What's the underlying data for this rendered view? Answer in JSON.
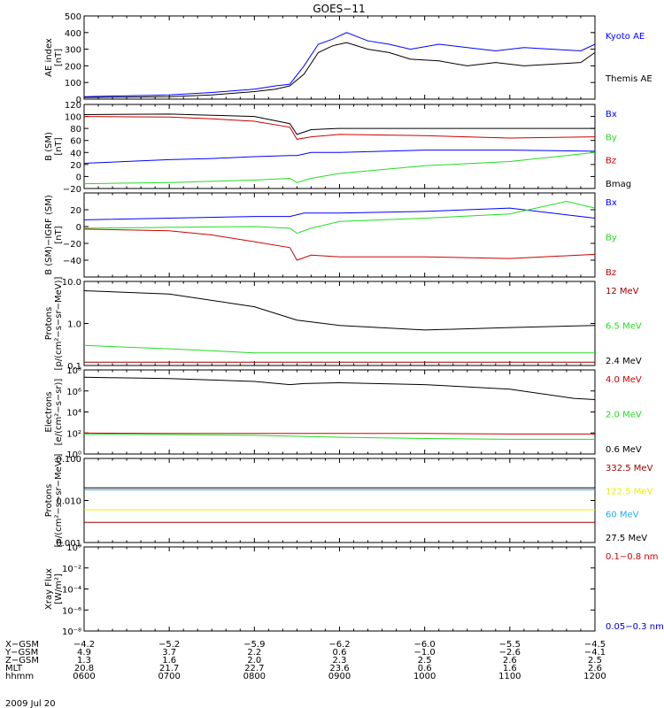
{
  "title": "GOES−11",
  "colors": {
    "blue": "#0000ff",
    "black": "#000000",
    "red": "#cc0000",
    "green": "#22dd22",
    "darkred": "#990000",
    "yellow": "#eeee00",
    "cyan": "#22aaee",
    "panel_red": "#cc0000",
    "panel_blue": "#0000cc"
  },
  "x_range": [
    "06:00",
    "12:00"
  ],
  "tick_label_rows": [
    {
      "label": "X−GSM",
      "values": [
        "−4.2",
        "−5.2",
        "−5.9",
        "−6.2",
        "−6.0",
        "−5.5",
        "−4.5"
      ]
    },
    {
      "label": "Y−GSM",
      "values": [
        "4.9",
        "3.7",
        "2.2",
        "0.6",
        "−1.0",
        "−2.6",
        "−4.1"
      ]
    },
    {
      "label": "Z−GSM",
      "values": [
        "1.3",
        "1.6",
        "2.0",
        "2.3",
        "2.5",
        "2.6",
        "2.5"
      ]
    },
    {
      "label": "MLT",
      "values": [
        "20.8",
        "21.7",
        "22.7",
        "23.6",
        "0.6",
        "1.6",
        "2.6"
      ]
    },
    {
      "label": "hhmm",
      "values": [
        "0600",
        "0700",
        "0800",
        "0900",
        "1000",
        "1100",
        "1200"
      ]
    }
  ],
  "date_label": "2009 Jul 20",
  "chart_data": [
    {
      "type": "line",
      "ylabel": [
        "AE index",
        "[nT]"
      ],
      "ylim": [
        0,
        500
      ],
      "yticks": [
        "0",
        "100",
        "200",
        "300",
        "400",
        "500"
      ],
      "series": [
        {
          "name": "Kyoto AE",
          "color_key": "blue",
          "x": [
            "06:00",
            "06:30",
            "07:00",
            "07:30",
            "08:00",
            "08:15",
            "08:25",
            "08:35",
            "08:45",
            "08:55",
            "09:05",
            "09:20",
            "09:35",
            "09:50",
            "10:10",
            "10:30",
            "10:50",
            "11:10",
            "11:30",
            "11:50",
            "12:00"
          ],
          "y": [
            15,
            20,
            25,
            40,
            60,
            80,
            90,
            200,
            330,
            360,
            400,
            350,
            330,
            300,
            330,
            310,
            290,
            310,
            300,
            290,
            330
          ]
        },
        {
          "name": "Themis AE",
          "color_key": "black",
          "x": [
            "06:00",
            "06:30",
            "07:00",
            "07:30",
            "08:00",
            "08:15",
            "08:25",
            "08:35",
            "08:45",
            "08:55",
            "09:05",
            "09:20",
            "09:35",
            "09:50",
            "10:10",
            "10:30",
            "10:50",
            "11:10",
            "11:30",
            "11:50",
            "12:00"
          ],
          "y": [
            10,
            12,
            15,
            25,
            45,
            60,
            80,
            150,
            280,
            320,
            340,
            300,
            280,
            240,
            230,
            200,
            220,
            200,
            210,
            220,
            280
          ]
        }
      ]
    },
    {
      "type": "line",
      "ylabel": [
        "B (SM)",
        "[nT]"
      ],
      "ylim": [
        -20,
        120
      ],
      "yticks": [
        "−20",
        "0",
        "20",
        "40",
        "60",
        "80",
        "100",
        "120"
      ],
      "legend": [
        {
          "label": "Bx",
          "color_key": "blue"
        },
        {
          "label": "By",
          "color_key": "green"
        },
        {
          "label": "Bz",
          "color_key": "red"
        },
        {
          "label": "Bmag",
          "color_key": "black"
        }
      ],
      "series": [
        {
          "color_key": "black",
          "x": [
            "06:00",
            "07:00",
            "07:30",
            "08:00",
            "08:25",
            "08:30",
            "08:40",
            "09:00",
            "10:00",
            "11:00",
            "12:00"
          ],
          "y": [
            103,
            104,
            102,
            100,
            88,
            70,
            78,
            80,
            80,
            80,
            80
          ]
        },
        {
          "color_key": "red",
          "x": [
            "06:00",
            "07:00",
            "07:30",
            "08:00",
            "08:25",
            "08:30",
            "08:40",
            "09:00",
            "10:00",
            "11:00",
            "12:00"
          ],
          "y": [
            100,
            99,
            96,
            92,
            82,
            62,
            66,
            70,
            68,
            64,
            66
          ]
        },
        {
          "color_key": "blue",
          "x": [
            "06:00",
            "07:00",
            "07:30",
            "08:00",
            "08:25",
            "08:30",
            "08:40",
            "09:00",
            "10:00",
            "11:00",
            "12:00"
          ],
          "y": [
            22,
            28,
            30,
            33,
            35,
            35,
            40,
            40,
            44,
            44,
            42
          ]
        },
        {
          "color_key": "green",
          "x": [
            "06:00",
            "07:00",
            "07:30",
            "08:00",
            "08:25",
            "08:30",
            "08:40",
            "09:00",
            "10:00",
            "11:00",
            "12:00"
          ],
          "y": [
            -12,
            -10,
            -8,
            -6,
            -3,
            -10,
            -3,
            5,
            18,
            25,
            40
          ]
        }
      ]
    },
    {
      "type": "line",
      "ylabel": [
        "B (SM)−IGRF (SM)",
        "[nT]"
      ],
      "ylim": [
        -60,
        40
      ],
      "yticks": [
        "−40",
        "−20",
        "0",
        "20"
      ],
      "legend": [
        {
          "label": "Bx",
          "color_key": "blue"
        },
        {
          "label": "By",
          "color_key": "green"
        },
        {
          "label": "Bz",
          "color_key": "red"
        }
      ],
      "series": [
        {
          "color_key": "blue",
          "x": [
            "06:00",
            "07:00",
            "08:00",
            "08:25",
            "08:35",
            "09:00",
            "10:00",
            "11:00",
            "11:40",
            "12:00"
          ],
          "y": [
            8,
            10,
            12,
            12,
            16,
            16,
            18,
            22,
            14,
            10
          ]
        },
        {
          "color_key": "green",
          "x": [
            "06:00",
            "07:00",
            "08:00",
            "08:25",
            "08:30",
            "08:40",
            "09:00",
            "10:00",
            "11:00",
            "11:40",
            "12:00"
          ],
          "y": [
            -2,
            -1,
            0,
            -2,
            -8,
            -2,
            6,
            10,
            15,
            30,
            22
          ]
        },
        {
          "color_key": "red",
          "x": [
            "06:00",
            "07:00",
            "07:30",
            "08:00",
            "08:25",
            "08:30",
            "08:40",
            "09:00",
            "10:00",
            "11:00",
            "12:00"
          ],
          "y": [
            -3,
            -5,
            -10,
            -18,
            -25,
            -40,
            -34,
            -36,
            -36,
            -38,
            -33
          ]
        }
      ]
    },
    {
      "type": "line",
      "ylabel": [
        "Protons",
        "[p/(cm²−s−sr−MeV)]"
      ],
      "yscale": "log",
      "ylim": [
        0.1,
        10
      ],
      "yticks": [
        "0.1",
        "1.0",
        "10.0"
      ],
      "legend": [
        {
          "label": "12 MeV",
          "color_key": "darkred"
        },
        {
          "label": "6.5 MeV",
          "color_key": "green"
        },
        {
          "label": "2.4 MeV",
          "color_key": "black"
        }
      ],
      "series": [
        {
          "color_key": "black",
          "x": [
            "06:00",
            "07:00",
            "08:00",
            "08:30",
            "09:00",
            "10:00",
            "11:00",
            "12:00"
          ],
          "y": [
            6,
            5,
            2.5,
            1.2,
            0.9,
            0.7,
            0.8,
            0.9
          ]
        },
        {
          "color_key": "green",
          "x": [
            "06:00",
            "07:00",
            "08:00",
            "09:00",
            "10:00",
            "11:00",
            "12:00"
          ],
          "y": [
            0.3,
            0.25,
            0.2,
            0.2,
            0.2,
            0.2,
            0.2
          ]
        },
        {
          "color_key": "darkred",
          "x": [
            "06:00",
            "07:00",
            "08:00",
            "09:00",
            "10:00",
            "11:00",
            "12:00"
          ],
          "y": [
            0.12,
            0.12,
            0.12,
            0.12,
            0.12,
            0.12,
            0.12
          ]
        }
      ]
    },
    {
      "type": "line",
      "ylabel": [
        "Electrons",
        "[e/(cm²−s−sr)]"
      ],
      "yscale": "log",
      "ylim": [
        1,
        100000000
      ],
      "yticks": [
        "10⁰",
        "10²",
        "10⁴",
        "10⁶",
        "10⁸"
      ],
      "legend": [
        {
          "label": "4.0 MeV",
          "color_key": "red"
        },
        {
          "label": "2.0 MeV",
          "color_key": "green"
        },
        {
          "label": "0.6 MeV",
          "color_key": "black"
        }
      ],
      "series": [
        {
          "color_key": "black",
          "x": [
            "06:00",
            "07:00",
            "08:00",
            "08:25",
            "08:35",
            "09:00",
            "10:00",
            "11:00",
            "11:45",
            "12:00"
          ],
          "y": [
            20000000,
            15000000,
            8000000,
            4000000,
            5000000,
            6000000,
            4000000,
            1500000,
            200000,
            150000
          ]
        },
        {
          "color_key": "red",
          "x": [
            "06:00",
            "07:00",
            "08:00",
            "09:00",
            "10:00",
            "11:00",
            "12:00"
          ],
          "y": [
            100,
            90,
            90,
            90,
            90,
            80,
            80
          ]
        },
        {
          "color_key": "green",
          "x": [
            "06:00",
            "07:00",
            "08:00",
            "09:00",
            "10:00",
            "11:00",
            "12:00"
          ],
          "y": [
            80,
            70,
            60,
            40,
            30,
            25,
            25
          ]
        }
      ]
    },
    {
      "type": "line",
      "ylabel": [
        "Protons",
        "[p/(cm²−s−sr−MeV)]"
      ],
      "yscale": "log",
      "ylim": [
        0.001,
        0.1
      ],
      "yticks": [
        "0.001",
        "0.010",
        "0.100"
      ],
      "legend": [
        {
          "label": "332.5 MeV",
          "color_key": "darkred"
        },
        {
          "label": "122.5 MeV",
          "color_key": "yellow"
        },
        {
          "label": "60 MeV",
          "color_key": "cyan"
        },
        {
          "label": "27.5 MeV",
          "color_key": "black"
        }
      ],
      "series": [
        {
          "color_key": "black",
          "x": [
            "06:00",
            "07:00",
            "08:00",
            "09:00",
            "10:00",
            "11:00",
            "12:00"
          ],
          "y": [
            0.02,
            0.02,
            0.02,
            0.02,
            0.02,
            0.02,
            0.02
          ]
        },
        {
          "color_key": "cyan",
          "x": [
            "06:00",
            "07:00",
            "08:00",
            "09:00",
            "10:00",
            "11:00",
            "12:00"
          ],
          "y": [
            0.018,
            0.018,
            0.018,
            0.018,
            0.018,
            0.018,
            0.018
          ]
        },
        {
          "color_key": "yellow",
          "x": [
            "06:00",
            "07:00",
            "08:00",
            "09:00",
            "10:00",
            "11:00",
            "12:00"
          ],
          "y": [
            0.006,
            0.006,
            0.006,
            0.006,
            0.006,
            0.006,
            0.006
          ]
        },
        {
          "color_key": "darkred",
          "x": [
            "06:00",
            "07:00",
            "08:00",
            "09:00",
            "10:00",
            "11:00",
            "12:00"
          ],
          "y": [
            0.003,
            0.003,
            0.003,
            0.003,
            0.003,
            0.003,
            0.003
          ]
        }
      ]
    },
    {
      "type": "line",
      "ylabel": [
        "Xray Flux",
        "[W/m²]"
      ],
      "yscale": "log",
      "ylim": [
        1e-08,
        1
      ],
      "yticks": [
        "10⁻⁸",
        "10⁻⁶",
        "10⁻⁴",
        "10⁻²",
        "10⁰"
      ],
      "legend": [
        {
          "label": "0.1−0.8 nm",
          "color_key": "panel_red"
        },
        {
          "label": "0.05−0.3 nm",
          "color_key": "panel_blue"
        }
      ],
      "series": []
    }
  ],
  "panel_legends": {
    "p0": [
      {
        "label": "Kyoto AE",
        "color_key": "blue"
      },
      {
        "label": "Themis AE",
        "color_key": "black"
      }
    ]
  }
}
